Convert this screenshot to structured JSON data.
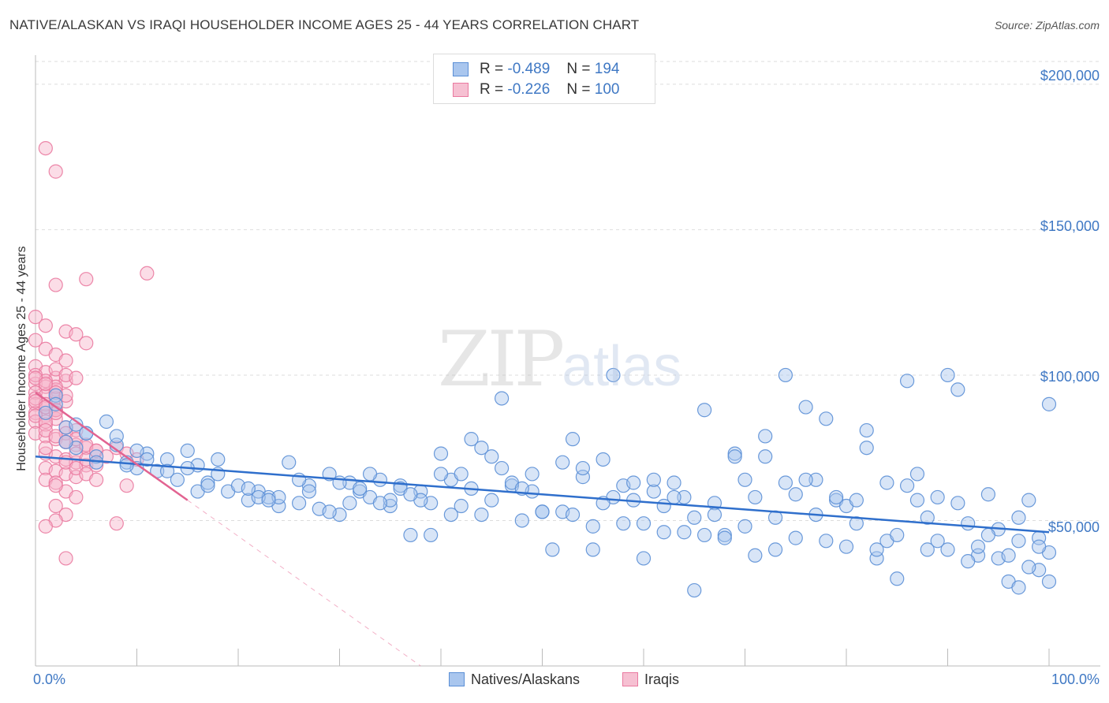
{
  "title": "NATIVE/ALASKAN VS IRAQI HOUSEHOLDER INCOME AGES 25 - 44 YEARS CORRELATION CHART",
  "source": "Source: ZipAtlas.com",
  "watermark": {
    "zip": "ZIP",
    "atlas": "atlas"
  },
  "legend": {
    "rows": [
      {
        "r_label": "R =",
        "r_value": "-0.489",
        "n_label": "N =",
        "n_value": "194"
      },
      {
        "r_label": "R =",
        "r_value": "-0.226",
        "n_label": "N =",
        "n_value": "100"
      }
    ]
  },
  "bottom_legend": [
    "Natives/Alaskans",
    "Iraqis"
  ],
  "colors": {
    "blue_fill": "#a9c6ee",
    "blue_stroke": "#5b8fd6",
    "blue_line": "#2f6fcc",
    "pink_fill": "#f6b3c9",
    "pink_stroke": "#ea7aa0",
    "pink_line": "#e26391",
    "tick_text": "#3f78c4",
    "grid": "#dddddd"
  },
  "chart_data": {
    "type": "scatter",
    "title": "NATIVE/ALASKAN VS IRAQI HOUSEHOLDER INCOME AGES 25 - 44 YEARS CORRELATION CHART",
    "xlabel": "",
    "ylabel": "Householder Income Ages 25 - 44 years",
    "xlim": [
      0,
      100
    ],
    "ylim": [
      0,
      210000
    ],
    "x_tick_labels": [
      "0.0%",
      "100.0%"
    ],
    "y_ticks": [
      50000,
      100000,
      150000,
      200000
    ],
    "y_tick_labels": [
      "$50,000",
      "$100,000",
      "$150,000",
      "$200,000"
    ],
    "grid": true,
    "series": [
      {
        "name": "Natives/Alaskans",
        "color": "#5b8fd6",
        "trend": {
          "x": [
            0,
            100
          ],
          "y": [
            72000,
            46000
          ]
        },
        "points": [
          [
            1,
            87000
          ],
          [
            2,
            93000
          ],
          [
            3,
            82000
          ],
          [
            4,
            75000
          ],
          [
            5,
            80000
          ],
          [
            6,
            72000
          ],
          [
            7,
            84000
          ],
          [
            8,
            76000
          ],
          [
            9,
            70000
          ],
          [
            10,
            68000
          ],
          [
            11,
            73000
          ],
          [
            12,
            67000
          ],
          [
            13,
            71000
          ],
          [
            14,
            64000
          ],
          [
            15,
            74000
          ],
          [
            16,
            69000
          ],
          [
            17,
            63000
          ],
          [
            18,
            66000
          ],
          [
            19,
            60000
          ],
          [
            20,
            62000
          ],
          [
            21,
            57000
          ],
          [
            22,
            60000
          ],
          [
            23,
            58000
          ],
          [
            24,
            55000
          ],
          [
            25,
            70000
          ],
          [
            26,
            56000
          ],
          [
            27,
            62000
          ],
          [
            28,
            54000
          ],
          [
            29,
            66000
          ],
          [
            30,
            52000
          ],
          [
            31,
            63000
          ],
          [
            32,
            60000
          ],
          [
            33,
            58000
          ],
          [
            34,
            64000
          ],
          [
            35,
            55000
          ],
          [
            36,
            62000
          ],
          [
            37,
            45000
          ],
          [
            38,
            60000
          ],
          [
            39,
            56000
          ],
          [
            40,
            73000
          ],
          [
            41,
            64000
          ],
          [
            42,
            55000
          ],
          [
            43,
            78000
          ],
          [
            44,
            52000
          ],
          [
            45,
            72000
          ],
          [
            46,
            92000
          ],
          [
            47,
            62000
          ],
          [
            48,
            50000
          ],
          [
            49,
            60000
          ],
          [
            50,
            53000
          ],
          [
            51,
            40000
          ],
          [
            52,
            70000
          ],
          [
            53,
            78000
          ],
          [
            54,
            65000
          ],
          [
            55,
            40000
          ],
          [
            56,
            71000
          ],
          [
            57,
            100000
          ],
          [
            58,
            62000
          ],
          [
            59,
            57000
          ],
          [
            60,
            37000
          ],
          [
            61,
            60000
          ],
          [
            62,
            55000
          ],
          [
            63,
            63000
          ],
          [
            64,
            46000
          ],
          [
            65,
            26000
          ],
          [
            66,
            88000
          ],
          [
            67,
            56000
          ],
          [
            68,
            45000
          ],
          [
            69,
            73000
          ],
          [
            70,
            64000
          ],
          [
            71,
            38000
          ],
          [
            72,
            79000
          ],
          [
            73,
            51000
          ],
          [
            74,
            100000
          ],
          [
            75,
            44000
          ],
          [
            76,
            89000
          ],
          [
            77,
            64000
          ],
          [
            78,
            85000
          ],
          [
            79,
            57000
          ],
          [
            80,
            55000
          ],
          [
            81,
            49000
          ],
          [
            82,
            81000
          ],
          [
            83,
            37000
          ],
          [
            84,
            63000
          ],
          [
            85,
            30000
          ],
          [
            86,
            98000
          ],
          [
            87,
            57000
          ],
          [
            88,
            51000
          ],
          [
            89,
            43000
          ],
          [
            90,
            100000
          ],
          [
            91,
            95000
          ],
          [
            92,
            49000
          ],
          [
            93,
            38000
          ],
          [
            94,
            59000
          ],
          [
            95,
            47000
          ],
          [
            96,
            29000
          ],
          [
            97,
            51000
          ],
          [
            98,
            57000
          ],
          [
            99,
            44000
          ],
          [
            100,
            90000
          ],
          [
            4,
            83000
          ],
          [
            8,
            79000
          ],
          [
            13,
            67000
          ],
          [
            18,
            71000
          ],
          [
            22,
            58000
          ],
          [
            27,
            60000
          ],
          [
            33,
            66000
          ],
          [
            38,
            57000
          ],
          [
            44,
            75000
          ],
          [
            49,
            66000
          ],
          [
            54,
            68000
          ],
          [
            59,
            63000
          ],
          [
            64,
            58000
          ],
          [
            69,
            72000
          ],
          [
            74,
            63000
          ],
          [
            79,
            58000
          ],
          [
            84,
            43000
          ],
          [
            89,
            58000
          ],
          [
            94,
            45000
          ],
          [
            99,
            33000
          ],
          [
            2,
            90000
          ],
          [
            6,
            70000
          ],
          [
            10,
            74000
          ],
          [
            16,
            60000
          ],
          [
            24,
            58000
          ],
          [
            30,
            63000
          ],
          [
            36,
            61000
          ],
          [
            42,
            66000
          ],
          [
            47,
            63000
          ],
          [
            52,
            53000
          ],
          [
            57,
            58000
          ],
          [
            63,
            58000
          ],
          [
            67,
            52000
          ],
          [
            72,
            72000
          ],
          [
            77,
            52000
          ],
          [
            82,
            75000
          ],
          [
            87,
            66000
          ],
          [
            92,
            36000
          ],
          [
            97,
            43000
          ],
          [
            100,
            39000
          ],
          [
            3,
            77000
          ],
          [
            9,
            69000
          ],
          [
            15,
            68000
          ],
          [
            21,
            61000
          ],
          [
            26,
            64000
          ],
          [
            32,
            61000
          ],
          [
            39,
            45000
          ],
          [
            45,
            57000
          ],
          [
            50,
            53000
          ],
          [
            55,
            48000
          ],
          [
            60,
            49000
          ],
          [
            65,
            51000
          ],
          [
            70,
            48000
          ],
          [
            75,
            59000
          ],
          [
            80,
            41000
          ],
          [
            85,
            45000
          ],
          [
            90,
            40000
          ],
          [
            95,
            37000
          ],
          [
            98,
            34000
          ],
          [
            100,
            29000
          ],
          [
            5,
            80000
          ],
          [
            11,
            71000
          ],
          [
            17,
            62000
          ],
          [
            23,
            57000
          ],
          [
            29,
            53000
          ],
          [
            35,
            57000
          ],
          [
            41,
            52000
          ],
          [
            48,
            61000
          ],
          [
            53,
            52000
          ],
          [
            58,
            49000
          ],
          [
            62,
            46000
          ],
          [
            68,
            44000
          ],
          [
            73,
            40000
          ],
          [
            78,
            43000
          ],
          [
            83,
            40000
          ],
          [
            88,
            40000
          ],
          [
            93,
            41000
          ],
          [
            96,
            38000
          ],
          [
            99,
            41000
          ],
          [
            97,
            27000
          ],
          [
            31,
            56000
          ],
          [
            37,
            59000
          ],
          [
            43,
            61000
          ],
          [
            61,
            64000
          ],
          [
            66,
            45000
          ],
          [
            71,
            58000
          ],
          [
            76,
            64000
          ],
          [
            81,
            57000
          ],
          [
            86,
            62000
          ],
          [
            91,
            56000
          ],
          [
            40,
            66000
          ],
          [
            56,
            56000
          ],
          [
            46,
            68000
          ],
          [
            34,
            56000
          ]
        ]
      },
      {
        "name": "Iraqis",
        "color": "#ea7aa0",
        "trend": {
          "x": [
            0,
            15
          ],
          "y": [
            94000,
            57000
          ]
        },
        "trend_extension": {
          "x": [
            15,
            38
          ],
          "y": [
            57000,
            0
          ]
        },
        "points": [
          [
            1,
            178000
          ],
          [
            2,
            170000
          ],
          [
            11,
            135000
          ],
          [
            5,
            133000
          ],
          [
            2,
            131000
          ],
          [
            0,
            120000
          ],
          [
            1,
            117000
          ],
          [
            3,
            115000
          ],
          [
            4,
            114000
          ],
          [
            0,
            112000
          ],
          [
            5,
            111000
          ],
          [
            1,
            109000
          ],
          [
            2,
            107000
          ],
          [
            3,
            105000
          ],
          [
            0,
            103000
          ],
          [
            1,
            101000
          ],
          [
            2,
            99000
          ],
          [
            3,
            98000
          ],
          [
            0,
            97000
          ],
          [
            1,
            96000
          ],
          [
            2,
            95000
          ],
          [
            0,
            94000
          ],
          [
            1,
            93000
          ],
          [
            2,
            92000
          ],
          [
            3,
            91000
          ],
          [
            0,
            90000
          ],
          [
            1,
            89000
          ],
          [
            2,
            88000
          ],
          [
            0,
            87000
          ],
          [
            1,
            86000
          ],
          [
            2,
            85000
          ],
          [
            0,
            84000
          ],
          [
            1,
            83000
          ],
          [
            3,
            82000
          ],
          [
            4,
            81000
          ],
          [
            0,
            80000
          ],
          [
            1,
            79000
          ],
          [
            2,
            78000
          ],
          [
            3,
            77000
          ],
          [
            4,
            76000
          ],
          [
            5,
            75000
          ],
          [
            6,
            74000
          ],
          [
            1,
            73000
          ],
          [
            2,
            72000
          ],
          [
            3,
            71000
          ],
          [
            4,
            70000
          ],
          [
            5,
            69000
          ],
          [
            1,
            68000
          ],
          [
            2,
            67000
          ],
          [
            3,
            66000
          ],
          [
            4,
            65000
          ],
          [
            1,
            64000
          ],
          [
            2,
            63000
          ],
          [
            9,
            62000
          ],
          [
            3,
            60000
          ],
          [
            4,
            58000
          ],
          [
            2,
            55000
          ],
          [
            3,
            52000
          ],
          [
            2,
            50000
          ],
          [
            8,
            49000
          ],
          [
            1,
            48000
          ],
          [
            3,
            37000
          ],
          [
            0,
            100000
          ],
          [
            1,
            98000
          ],
          [
            2,
            96000
          ],
          [
            0,
            92000
          ],
          [
            1,
            90000
          ],
          [
            2,
            88000
          ],
          [
            0,
            86000
          ],
          [
            1,
            84000
          ],
          [
            3,
            80000
          ],
          [
            4,
            78000
          ],
          [
            5,
            76000
          ],
          [
            6,
            74000
          ],
          [
            7,
            72000
          ],
          [
            8,
            75000
          ],
          [
            9,
            73000
          ],
          [
            10,
            71000
          ],
          [
            2,
            94000
          ],
          [
            3,
            93000
          ],
          [
            0,
            99000
          ],
          [
            1,
            97000
          ],
          [
            0,
            91000
          ],
          [
            1,
            89000
          ],
          [
            2,
            87000
          ],
          [
            3,
            70000
          ],
          [
            4,
            68000
          ],
          [
            5,
            66000
          ],
          [
            6,
            64000
          ],
          [
            2,
            102000
          ],
          [
            3,
            100000
          ],
          [
            4,
            99000
          ],
          [
            1,
            81000
          ],
          [
            2,
            79000
          ],
          [
            3,
            77000
          ],
          [
            4,
            73000
          ],
          [
            5,
            71000
          ],
          [
            6,
            69000
          ],
          [
            1,
            75000
          ],
          [
            2,
            62000
          ]
        ]
      }
    ]
  }
}
